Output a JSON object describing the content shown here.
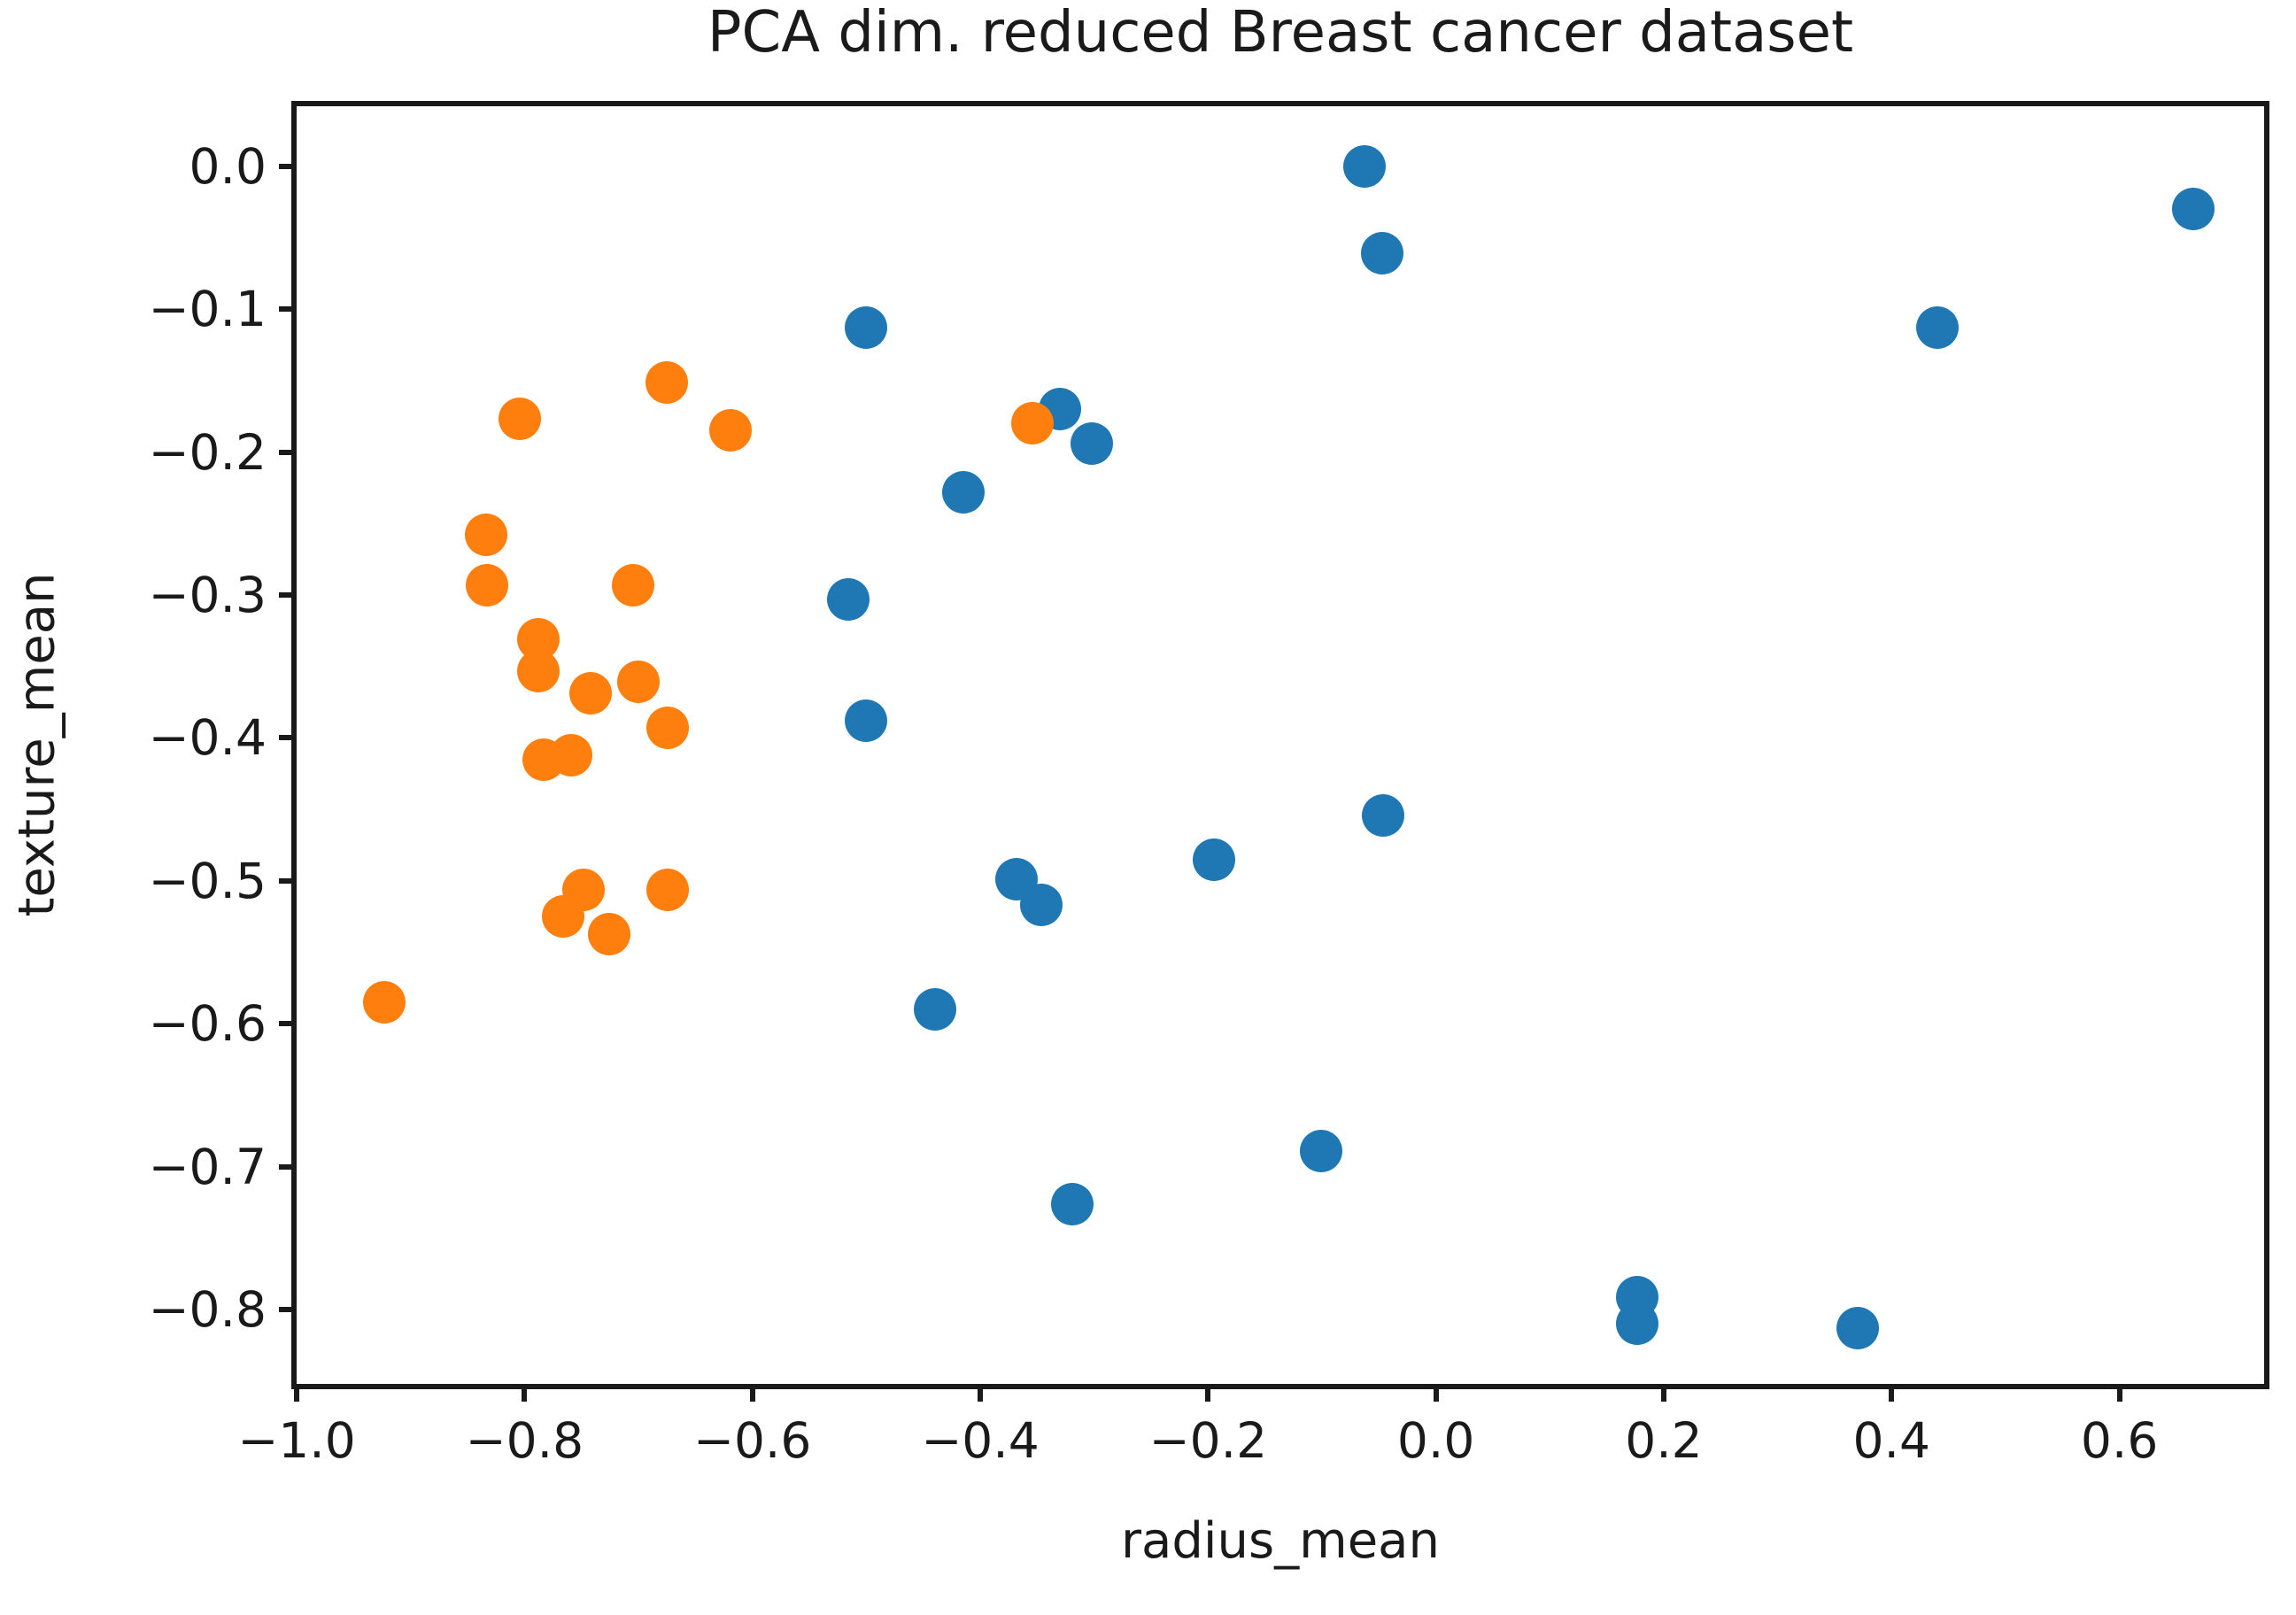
{
  "chart_data": {
    "type": "scatter",
    "title": "PCA dim. reduced Breast cancer dataset",
    "xlabel": "radius_mean",
    "ylabel": "texture_mean",
    "xlim": [
      -1.0,
      0.727
    ],
    "ylim": [
      -0.852,
      0.042
    ],
    "grid": false,
    "legend": "none",
    "x_ticks": [
      -1.0,
      -0.8,
      -0.6,
      -0.4,
      -0.2,
      0.0,
      0.2,
      0.4,
      0.6
    ],
    "x_tick_labels": [
      "−1.0",
      "−0.8",
      "−0.6",
      "−0.4",
      "−0.2",
      "0.0",
      "0.2",
      "0.4",
      "0.6"
    ],
    "y_ticks": [
      0.0,
      -0.1,
      -0.2,
      -0.3,
      -0.4,
      -0.5,
      -0.6,
      -0.7,
      -0.8
    ],
    "y_tick_labels": [
      "0.0",
      "−0.1",
      "−0.2",
      "−0.3",
      "−0.4",
      "−0.5",
      "−0.6",
      "−0.7",
      "−0.8"
    ],
    "series": [
      {
        "name": "blue-class",
        "color": "#1f77b4",
        "points": [
          [
            -0.063,
            0.0
          ],
          [
            -0.047,
            -0.061
          ],
          [
            0.665,
            -0.03
          ],
          [
            0.44,
            -0.113
          ],
          [
            -0.5,
            -0.113
          ],
          [
            -0.33,
            -0.17
          ],
          [
            -0.302,
            -0.194
          ],
          [
            -0.415,
            -0.228
          ],
          [
            -0.516,
            -0.303
          ],
          [
            -0.5,
            -0.388
          ],
          [
            -0.368,
            -0.499
          ],
          [
            -0.346,
            -0.517
          ],
          [
            -0.195,
            -0.485
          ],
          [
            -0.046,
            -0.454
          ],
          [
            -0.44,
            -0.59
          ],
          [
            -0.101,
            -0.689
          ],
          [
            -0.319,
            -0.726
          ],
          [
            0.177,
            -0.791
          ],
          [
            0.177,
            -0.81
          ],
          [
            0.37,
            -0.813
          ]
        ]
      },
      {
        "name": "orange-class",
        "color": "#ff7f0e",
        "points": [
          [
            -0.675,
            -0.151
          ],
          [
            -0.804,
            -0.177
          ],
          [
            -0.619,
            -0.185
          ],
          [
            -0.354,
            -0.18
          ],
          [
            -0.834,
            -0.258
          ],
          [
            -0.833,
            -0.293
          ],
          [
            -0.705,
            -0.293
          ],
          [
            -0.788,
            -0.331
          ],
          [
            -0.788,
            -0.353
          ],
          [
            -0.742,
            -0.369
          ],
          [
            -0.7,
            -0.361
          ],
          [
            -0.674,
            -0.393
          ],
          [
            -0.783,
            -0.415
          ],
          [
            -0.759,
            -0.412
          ],
          [
            -0.748,
            -0.506
          ],
          [
            -0.766,
            -0.525
          ],
          [
            -0.726,
            -0.537
          ],
          [
            -0.674,
            -0.506
          ],
          [
            -0.923,
            -0.585
          ]
        ]
      }
    ]
  }
}
